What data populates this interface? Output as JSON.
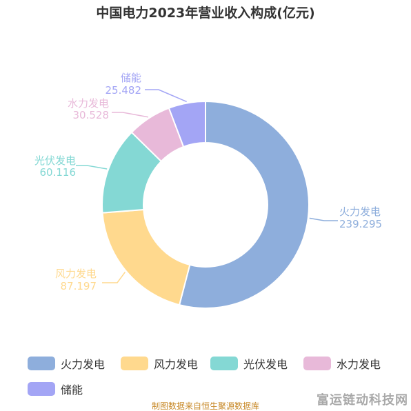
{
  "chart_data": {
    "type": "pie",
    "variant": "donut",
    "title": "中国电力2023年营业收入构成(亿元)",
    "series": [
      {
        "name": "火力发电",
        "value": 239.295,
        "value_label": "239.295",
        "color": "#8eaedc"
      },
      {
        "name": "风力发电",
        "value": 87.197,
        "value_label": "87.197",
        "color": "#ffd98e"
      },
      {
        "name": "光伏发电",
        "value": 60.116,
        "value_label": "60.116",
        "color": "#84d8d4"
      },
      {
        "name": "水力发电",
        "value": 30.528,
        "value_label": "30.528",
        "color": "#e8b9d9"
      },
      {
        "name": "储能",
        "value": 25.482,
        "value_label": "25.482",
        "color": "#a3a5f5"
      }
    ],
    "legend": {
      "position": "bottom"
    },
    "start_angle": "top",
    "direction": "clockwise"
  },
  "source_note": "制图数据来自恒生聚源数据库",
  "watermark": "富运链动科技网"
}
